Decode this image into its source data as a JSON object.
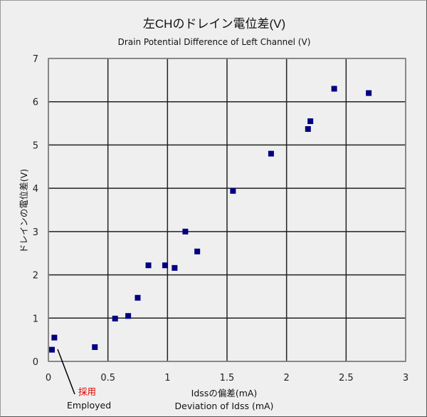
{
  "chart_data": {
    "type": "scatter",
    "title": "左CHのドレイン電位差(V)",
    "subtitle": "Drain Potential Difference of Left Channel (V)",
    "xlabel": "Idssの偏差(mA)",
    "xlabel_en": "Deviation of Idss (mA)",
    "ylabel": "ドレインの電位差(V)",
    "xlim": [
      0,
      3
    ],
    "ylim": [
      0,
      7
    ],
    "x_ticks": [
      "0",
      "0.5",
      "1",
      "1.5",
      "2",
      "2.5",
      "3"
    ],
    "y_ticks": [
      "0",
      "1",
      "2",
      "3",
      "4",
      "5",
      "6",
      "7"
    ],
    "grid": true,
    "legend": "none",
    "marker_color": "#000080",
    "series": [
      {
        "name": "Left Channel",
        "points": [
          {
            "x": 0.03,
            "y": 0.27
          },
          {
            "x": 0.05,
            "y": 0.55
          },
          {
            "x": 0.39,
            "y": 0.33
          },
          {
            "x": 0.56,
            "y": 0.99
          },
          {
            "x": 0.67,
            "y": 1.05
          },
          {
            "x": 0.75,
            "y": 1.47
          },
          {
            "x": 0.84,
            "y": 2.22
          },
          {
            "x": 0.98,
            "y": 2.22
          },
          {
            "x": 1.06,
            "y": 2.16
          },
          {
            "x": 1.15,
            "y": 3.0
          },
          {
            "x": 1.25,
            "y": 2.54
          },
          {
            "x": 1.55,
            "y": 3.94
          },
          {
            "x": 1.87,
            "y": 4.8
          },
          {
            "x": 2.18,
            "y": 5.37
          },
          {
            "x": 2.2,
            "y": 5.55
          },
          {
            "x": 2.4,
            "y": 6.3
          },
          {
            "x": 2.69,
            "y": 6.2
          }
        ]
      }
    ],
    "annotations": [
      {
        "text": "採用",
        "text_en": "Employed",
        "color": "#e00000",
        "points_to": {
          "x": 0.03,
          "y": 0.27
        }
      }
    ]
  }
}
